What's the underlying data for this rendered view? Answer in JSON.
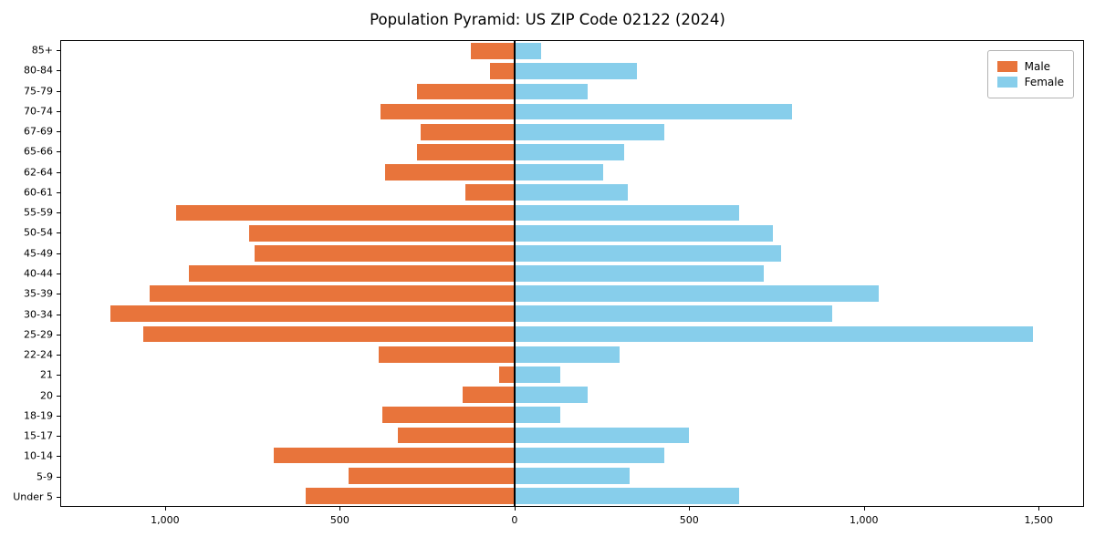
{
  "chart_data": {
    "type": "bar",
    "variant": "population-pyramid",
    "title": "Population Pyramid: US ZIP Code 02122 (2024)",
    "categories_top_to_bottom": [
      "85+",
      "80-84",
      "75-79",
      "70-74",
      "67-69",
      "65-66",
      "62-64",
      "60-61",
      "55-59",
      "50-54",
      "45-49",
      "40-44",
      "35-39",
      "30-34",
      "25-29",
      "22-24",
      "21",
      "20",
      "18-19",
      "15-17",
      "10-14",
      "5-9",
      "Under 5"
    ],
    "series": [
      {
        "name": "Male",
        "direction": "left",
        "color": "#e8743b",
        "values": [
          125,
          70,
          280,
          385,
          270,
          280,
          370,
          140,
          970,
          760,
          745,
          935,
          1045,
          1160,
          1065,
          390,
          45,
          150,
          380,
          335,
          690,
          475,
          600
        ]
      },
      {
        "name": "Female",
        "direction": "right",
        "color": "#87ceeb",
        "values": [
          75,
          350,
          210,
          795,
          430,
          315,
          255,
          325,
          645,
          740,
          765,
          715,
          1045,
          910,
          1485,
          300,
          130,
          210,
          130,
          500,
          430,
          330,
          645
        ]
      }
    ],
    "xlim": [
      -1300,
      1630
    ],
    "x_ticks": [
      {
        "value": -1000,
        "label": "1,000"
      },
      {
        "value": -500,
        "label": "500"
      },
      {
        "value": 0,
        "label": "0"
      },
      {
        "value": 500,
        "label": "500"
      },
      {
        "value": 1000,
        "label": "1,000"
      },
      {
        "value": 1500,
        "label": "1,500"
      }
    ],
    "legend": {
      "position": "upper-right",
      "entries": [
        "Male",
        "Female"
      ]
    },
    "grid": false,
    "bar_height_fraction": 0.8
  }
}
